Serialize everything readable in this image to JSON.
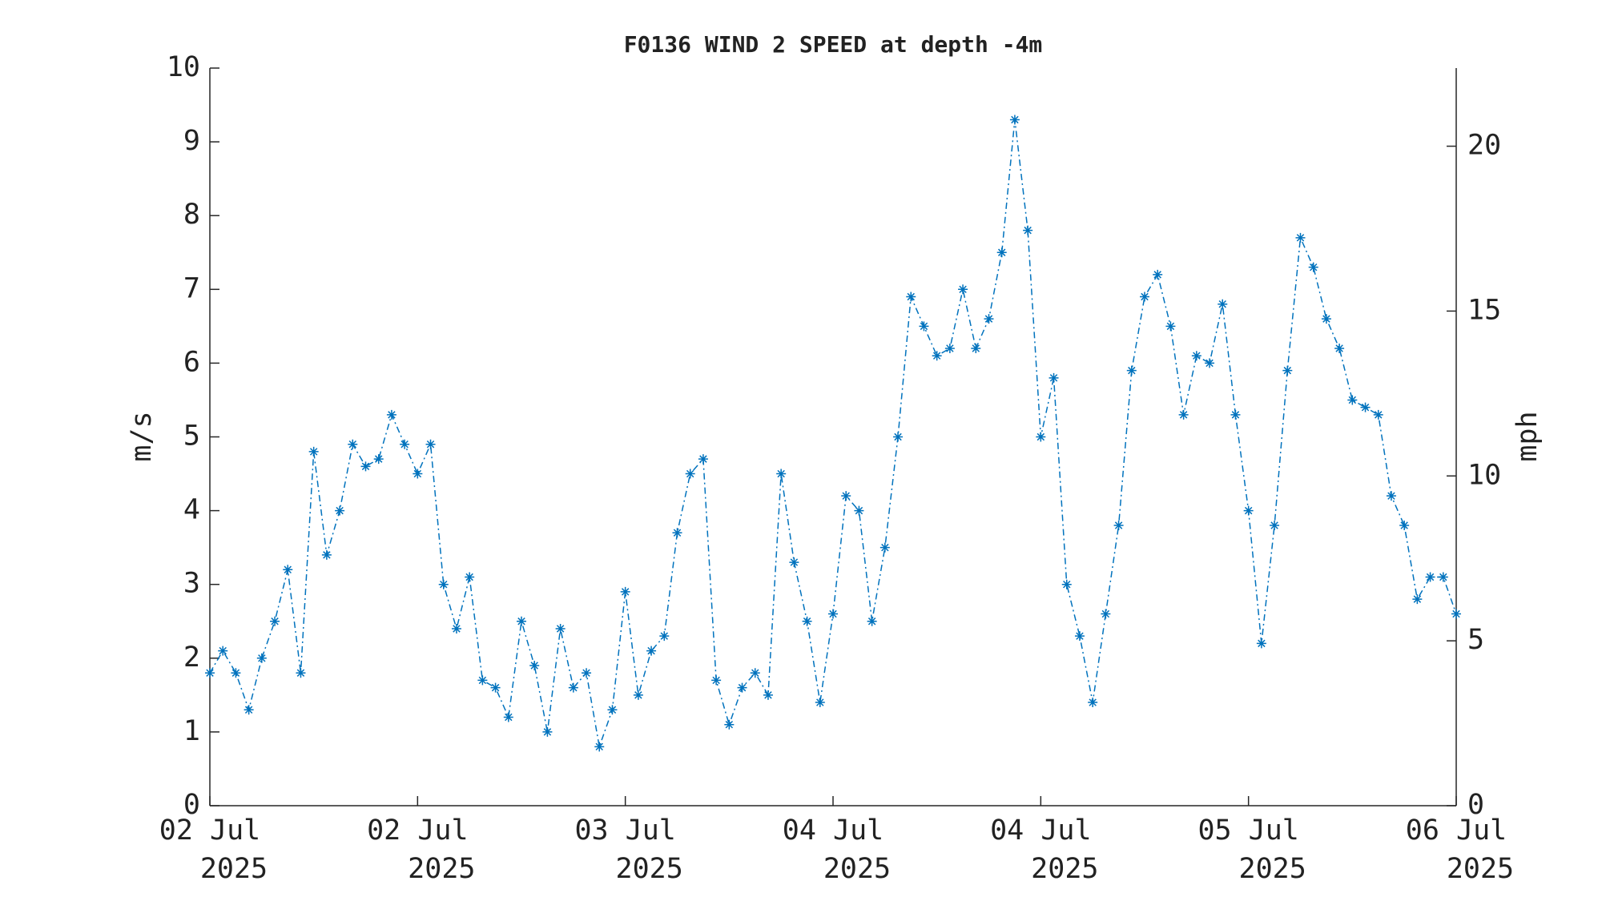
{
  "chart_data": {
    "type": "line",
    "title": "F0136 WIND 2 SPEED at depth -4m",
    "ylabel": "m/s",
    "y2label": "mph",
    "x": [
      0,
      1,
      2,
      3,
      4,
      5,
      6,
      7,
      8,
      9,
      10,
      11,
      12,
      13,
      14,
      15,
      16,
      17,
      18,
      19,
      20,
      21,
      22,
      23,
      24,
      25,
      26,
      27,
      28,
      29,
      30,
      31,
      32,
      33,
      34,
      35,
      36,
      37,
      38,
      39,
      40,
      41,
      42,
      43,
      44,
      45,
      46,
      47,
      48,
      49,
      50,
      51,
      52,
      53,
      54,
      55,
      56,
      57,
      58,
      59,
      60,
      61,
      62,
      63,
      64,
      65,
      66,
      67,
      68,
      69,
      70,
      71,
      72,
      73,
      74,
      75,
      76,
      77,
      78,
      79,
      80,
      81,
      82,
      83,
      84,
      85,
      86,
      87,
      88,
      89,
      90,
      91,
      92,
      93,
      94,
      95,
      96
    ],
    "series": [
      {
        "name": "WIND 2 SPEED",
        "color": "#0072bd",
        "values": [
          1.8,
          2.1,
          1.8,
          1.3,
          2.0,
          2.5,
          3.2,
          1.8,
          4.8,
          3.4,
          4.0,
          4.9,
          4.6,
          4.7,
          5.3,
          4.9,
          4.5,
          4.9,
          3.0,
          2.4,
          3.1,
          1.7,
          1.6,
          1.2,
          2.5,
          1.9,
          1.0,
          2.4,
          1.6,
          1.8,
          0.8,
          1.3,
          2.9,
          1.5,
          2.1,
          2.3,
          3.7,
          4.5,
          4.7,
          1.7,
          1.1,
          1.6,
          1.8,
          1.5,
          4.5,
          3.3,
          2.5,
          1.4,
          2.6,
          4.2,
          4.0,
          2.5,
          3.5,
          5.0,
          6.9,
          6.5,
          6.1,
          6.2,
          7.0,
          6.2,
          6.6,
          7.5,
          9.3,
          7.8,
          5.0,
          5.8,
          3.0,
          2.3,
          1.4,
          2.6,
          3.8,
          5.9,
          6.9,
          7.2,
          6.5,
          5.3,
          6.1,
          6.0,
          6.8,
          5.3,
          4.0,
          2.2,
          3.8,
          5.9,
          7.7,
          7.3,
          6.6,
          6.2,
          5.5,
          5.4,
          5.3,
          4.2,
          3.8,
          2.8,
          3.1,
          3.1,
          2.6
        ]
      }
    ],
    "xlim": [
      0,
      96
    ],
    "xticks": [
      {
        "value": 0,
        "label": "02 Jul\n2025"
      },
      {
        "value": 16,
        "label": "02 Jul\n2025"
      },
      {
        "value": 32,
        "label": "03 Jul\n2025"
      },
      {
        "value": 48,
        "label": "04 Jul\n2025"
      },
      {
        "value": 64,
        "label": "04 Jul\n2025"
      },
      {
        "value": 80,
        "label": "05 Jul\n2025"
      },
      {
        "value": 96,
        "label": "06 Jul\n2025"
      }
    ],
    "ylim": [
      0,
      10
    ],
    "yticks": [
      0,
      1,
      2,
      3,
      4,
      5,
      6,
      7,
      8,
      9,
      10
    ],
    "y2lim": [
      0,
      22.3694
    ],
    "y2ticks": [
      0,
      5,
      10,
      15,
      20
    ],
    "grid": false
  }
}
